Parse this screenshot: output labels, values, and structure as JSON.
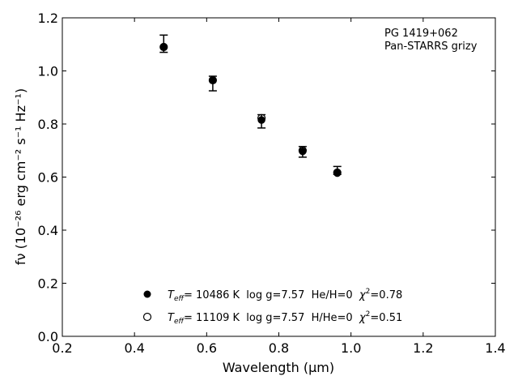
{
  "chart_data": {
    "type": "scatter",
    "xlabel": "Wavelength (μm)",
    "ylabel": "fν (10⁻²⁶ erg cm⁻² s⁻¹ Hz⁻¹)",
    "xlim": [
      0.2,
      1.4
    ],
    "ylim": [
      0.0,
      1.2
    ],
    "xticks": [
      "0.2",
      "0.4",
      "0.6",
      "0.8",
      "1.0",
      "1.2",
      "1.4"
    ],
    "yticks": [
      "0.0",
      "0.2",
      "0.4",
      "0.6",
      "0.8",
      "1.0",
      "1.2"
    ],
    "grid": false,
    "annotation": [
      "PG 1419+062",
      "Pan-STARRS grizy"
    ],
    "observed": {
      "x": [
        0.481,
        0.617,
        0.752,
        0.866,
        0.962
      ],
      "y": [
        1.1,
        0.955,
        0.81,
        0.695,
        0.625
      ],
      "err_lo": [
        0.03,
        0.03,
        0.025,
        0.02,
        0.015
      ],
      "err_hi": [
        0.035,
        0.025,
        0.025,
        0.02,
        0.015
      ]
    },
    "series": [
      {
        "name": "T_eff= 10486 K  log g=7.57  He/H=0  χ²=0.78",
        "marker": "filled-circle",
        "x": [
          0.481,
          0.617,
          0.752,
          0.866,
          0.962
        ],
        "y": [
          1.09,
          0.965,
          0.815,
          0.697,
          0.615
        ]
      },
      {
        "name": "T_eff= 11109 K  log g=7.57  H/He=0  χ²=0.51",
        "marker": "open-circle",
        "x": [
          0.481,
          0.617,
          0.752,
          0.866,
          0.962
        ],
        "y": [
          1.09,
          0.965,
          0.822,
          0.7,
          0.617
        ]
      }
    ],
    "legend": {
      "placement": "bottom-center",
      "entries": [
        {
          "teff": "T",
          "teff_sub": "eff",
          "rest_a": "= 10486 K  log g=7.57  He/H=0  ",
          "chi": "χ",
          "chi_sup": "2",
          "rest_b": "=0.78"
        },
        {
          "teff": "T",
          "teff_sub": "eff",
          "rest_a": "= 11109 K  log g=7.57  H/He=0  ",
          "chi": "χ",
          "chi_sup": "2",
          "rest_b": "=0.51"
        }
      ]
    },
    "colors": {
      "marker": "#000000",
      "axis": "#000000",
      "background": "#ffffff"
    }
  }
}
